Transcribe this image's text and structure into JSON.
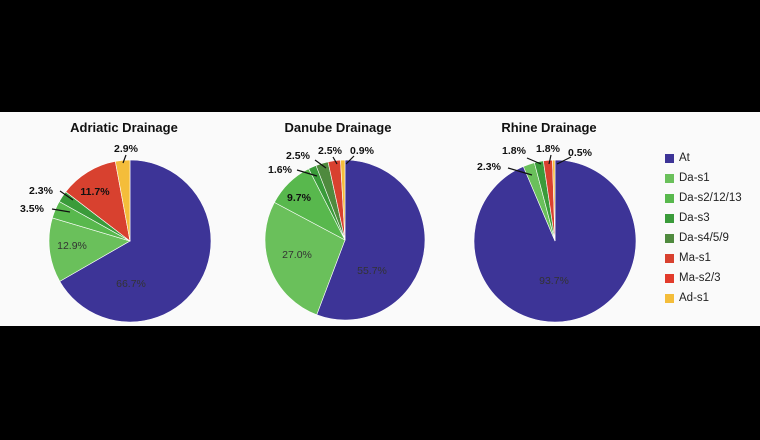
{
  "chart_data": {
    "type": "pie",
    "categories": [
      "At",
      "Da-s1",
      "Da-s2/12/13",
      "Da-s3",
      "Da-s4/5/9",
      "Ma-s1",
      "Ma-s2/3",
      "Ad-s1"
    ],
    "colors": [
      "#3d3497",
      "#6ac05b",
      "#58b84d",
      "#3a9b3a",
      "#4f8a3e",
      "#d8412f",
      "#e23b2b",
      "#f4bd3a"
    ],
    "legend_position": "right",
    "charts": [
      {
        "title": "Adriatic Drainage",
        "series": [
          {
            "category": "At",
            "value": 66.7,
            "label": "66.7%"
          },
          {
            "category": "Da-s1",
            "value": 12.9,
            "label": "12.9%"
          },
          {
            "category": "Da-s2/12/13",
            "value": 3.5,
            "label": "3.5%"
          },
          {
            "category": "Da-s3",
            "value": 2.3,
            "label": "2.3%"
          },
          {
            "category": "Ma-s1",
            "value": 11.7,
            "label": "11.7%"
          },
          {
            "category": "Ad-s1",
            "value": 2.9,
            "label": "2.9%"
          }
        ]
      },
      {
        "title": "Danube Drainage",
        "series": [
          {
            "category": "At",
            "value": 55.7,
            "label": "55.7%"
          },
          {
            "category": "Da-s1",
            "value": 27.0,
            "label": "27.0%"
          },
          {
            "category": "Da-s2/12/13",
            "value": 9.7,
            "label": "9.7%"
          },
          {
            "category": "Da-s3",
            "value": 1.6,
            "label": "1.6%"
          },
          {
            "category": "Da-s4/5/9",
            "value": 2.5,
            "label": "2.5%"
          },
          {
            "category": "Ma-s1",
            "value": 2.5,
            "label": "2.5%"
          },
          {
            "category": "Ad-s1",
            "value": 0.9,
            "label": "0.9%"
          }
        ]
      },
      {
        "title": "Rhine Drainage",
        "series": [
          {
            "category": "At",
            "value": 93.7,
            "label": "93.7%"
          },
          {
            "category": "Da-s1",
            "value": 2.3,
            "label": "2.3%"
          },
          {
            "category": "Da-s3",
            "value": 1.8,
            "label": "1.8%"
          },
          {
            "category": "Ma-s1",
            "value": 1.8,
            "label": "1.8%"
          },
          {
            "category": "Ad-s1",
            "value": 0.5,
            "label": "0.5%"
          }
        ]
      }
    ]
  }
}
